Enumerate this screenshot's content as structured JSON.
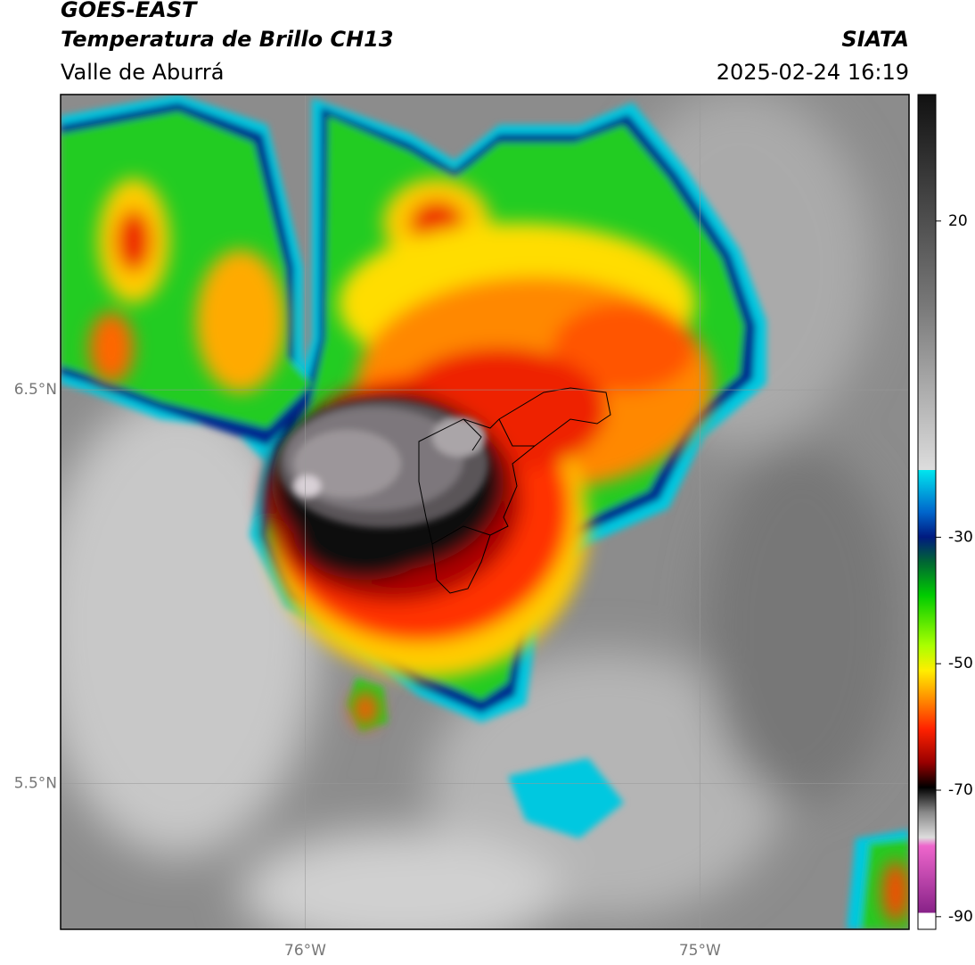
{
  "header": {
    "title": "GOES-EAST",
    "subtitle": "Temperatura de Brillo CH13",
    "region": "Valle de Aburrá",
    "source": "SIATA",
    "timestamp": "2025-02-24 16:19"
  },
  "map": {
    "xlim": [
      -76.62,
      -74.47
    ],
    "ylim": [
      5.13,
      7.25
    ],
    "lat_ticks": [
      {
        "value": 6.5,
        "label": "6.5°N"
      },
      {
        "value": 5.5,
        "label": "5.5°N"
      }
    ],
    "lon_ticks": [
      {
        "value": -76,
        "label": "76°W"
      },
      {
        "value": -75,
        "label": "75°W"
      }
    ]
  },
  "colorbar": {
    "range": [
      -92,
      40
    ],
    "ticks": [
      20,
      -30,
      -50,
      -70,
      -90
    ]
  }
}
